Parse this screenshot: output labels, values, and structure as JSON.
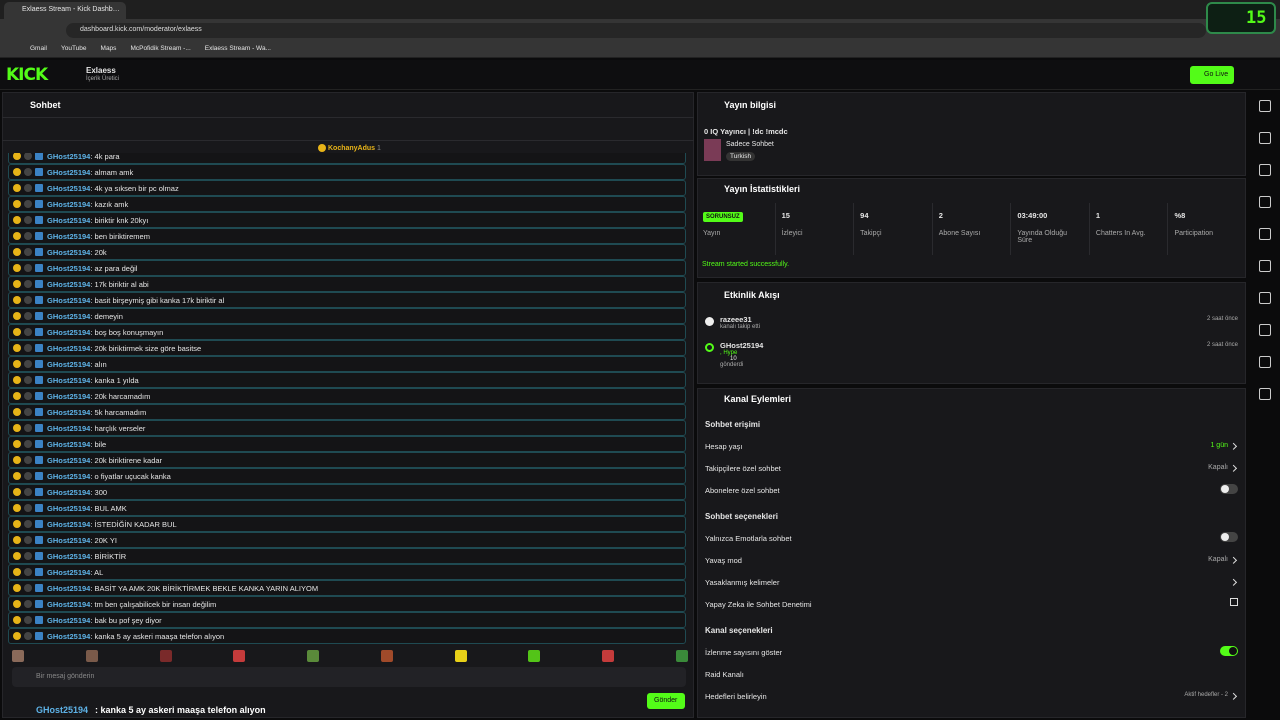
{
  "browser": {
    "tab_title": "Exlaess Stream - Kick Dashboard",
    "url": "dashboard.kick.com/moderator/exlaess",
    "bookmarks": [
      "Gmail",
      "YouTube",
      "Maps",
      "McPofidik Stream -...",
      "Exlaess Stream - Wa..."
    ]
  },
  "overlay_badge": "15",
  "header": {
    "logo": "KICK",
    "channel": "Exlaess",
    "role": "İçerik Üretici",
    "go_live": "Go Live"
  },
  "chat": {
    "title": "Sohbet",
    "pinned_user": "KochanyAdus",
    "pinned_count": 1,
    "messages": [
      {
        "user": "GHost25194",
        "text": ": 4k para"
      },
      {
        "user": "GHost25194",
        "text": ": almam amk"
      },
      {
        "user": "GHost25194",
        "text": ": 4k ya sıksen bir pc olmaz"
      },
      {
        "user": "GHost25194",
        "text": ": kazık amk"
      },
      {
        "user": "GHost25194",
        "text": ": biriktir knk 20kyı"
      },
      {
        "user": "GHost25194",
        "text": ": ben biriktiremem"
      },
      {
        "user": "GHost25194",
        "text": ": 20k"
      },
      {
        "user": "GHost25194",
        "text": ": az para değil"
      },
      {
        "user": "GHost25194",
        "text": ": 17k biriktir al abi"
      },
      {
        "user": "GHost25194",
        "text": ": basit birşeymiş gibi kanka 17k biriktir al"
      },
      {
        "user": "GHost25194",
        "text": ": demeyin"
      },
      {
        "user": "GHost25194",
        "text": ": boş boş konuşmayın"
      },
      {
        "user": "GHost25194",
        "text": ": 20k biriktirmek size göre basitse"
      },
      {
        "user": "GHost25194",
        "text": ": alın"
      },
      {
        "user": "GHost25194",
        "text": ": kanka 1 yılda"
      },
      {
        "user": "GHost25194",
        "text": ": 20k harcamadım"
      },
      {
        "user": "GHost25194",
        "text": ": 5k harcamadım"
      },
      {
        "user": "GHost25194",
        "text": ": harçlık verseler"
      },
      {
        "user": "GHost25194",
        "text": ": bile"
      },
      {
        "user": "GHost25194",
        "text": ": 20k biriktirene kadar"
      },
      {
        "user": "GHost25194",
        "text": ": o fiyatlar uçucak kanka"
      },
      {
        "user": "GHost25194",
        "text": ": 300"
      },
      {
        "user": "GHost25194",
        "text": ": BUL AMK"
      },
      {
        "user": "GHost25194",
        "text": ": İSTEDİĞİN KADAR BUL"
      },
      {
        "user": "GHost25194",
        "text": ": 20K YI"
      },
      {
        "user": "GHost25194",
        "text": ": BİRİKTİR"
      },
      {
        "user": "GHost25194",
        "text": ": AL"
      },
      {
        "user": "GHost25194",
        "text": ": BASİT YA AMK 20K BİRİKTİRMEK BEKLE KANKA YARIN ALIYOM"
      },
      {
        "user": "GHost25194",
        "text": ": tm ben çalışabilicek bir insan değilim"
      },
      {
        "user": "GHost25194",
        "text": ": bak bu pof şey diyor"
      },
      {
        "user": "GHost25194",
        "text": ": kanka 5 ay askeri maaşa telefon alıyon"
      }
    ],
    "placeholder": "Bir mesaj gönderin",
    "send": "Gönder",
    "last_user": "GHost25194",
    "last_text": ": kanka 5 ay askeri maaşa telefon alıyon"
  },
  "stream_info": {
    "title": "Yayın bilgisi",
    "stream_title": "0 IQ Yayıncı | !dc !mcdc",
    "category": "Sadece Sohbet",
    "tag": "Turkish"
  },
  "stats": {
    "title": "Yayın İstatistikleri",
    "items": [
      {
        "value": "SORUNSUZ",
        "label": "Yayın"
      },
      {
        "value": 15,
        "label": "İzleyici"
      },
      {
        "value": 94,
        "label": "Takipçi"
      },
      {
        "value": 2,
        "label": "Abone Sayısı"
      },
      {
        "value": "03:49:00",
        "label": "Yayında Olduğu Süre"
      },
      {
        "value": 1,
        "label": "Chatters In Avg."
      },
      {
        "value": "%8",
        "label": "Participation"
      }
    ],
    "status": "Stream started successfully."
  },
  "activity": {
    "title": "Etkinlik Akışı",
    "events": [
      {
        "user": "razeee31",
        "detail": "kanalı takip etti",
        "time": "2 saat önce"
      },
      {
        "user": "GHost25194",
        "detail": ", Hype",
        "amount": 10,
        "note": "gönderdi",
        "time": "2 saat önce"
      }
    ]
  },
  "actions": {
    "title": "Kanal Eylemleri",
    "sections": [
      {
        "heading": "Sohbet erişimi",
        "rows": [
          {
            "label": "Hesap yaşı",
            "value": "1 gün",
            "control": "chevron"
          },
          {
            "label": "Takipçilere özel sohbet",
            "value": "Kapalı",
            "control": "chevron"
          },
          {
            "label": "Abonelere özel sohbet",
            "control": "toggle",
            "on": false
          }
        ]
      },
      {
        "heading": "Sohbet seçenekleri",
        "rows": [
          {
            "label": "Yalnızca Emotlarla sohbet",
            "control": "toggle",
            "on": false
          },
          {
            "label": "Yavaş mod",
            "value": "Kapalı",
            "control": "chevron"
          },
          {
            "label": "Yasaklanmış kelimeler",
            "control": "chevron"
          },
          {
            "label": "Yapay Zeka ile Sohbet Denetimi",
            "control": "external"
          }
        ]
      },
      {
        "heading": "Kanal seçenekleri",
        "rows": [
          {
            "label": "İzlenme sayısını göster",
            "control": "toggle",
            "on": true
          },
          {
            "label": "Raid Kanalı",
            "control": "none"
          },
          {
            "label": "Hedefleri belirleyin",
            "value": "Aktif hedefler - 2",
            "control": "chevron"
          }
        ]
      }
    ]
  }
}
